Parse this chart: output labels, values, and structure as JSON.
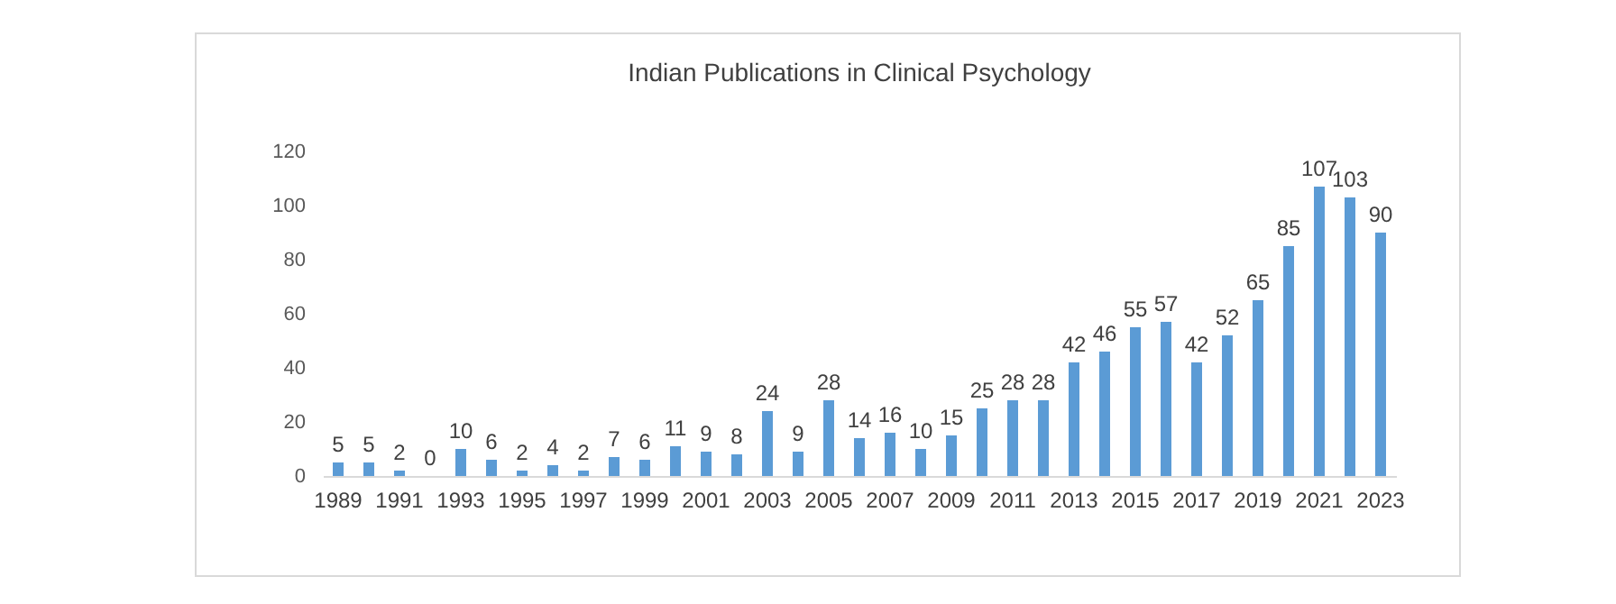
{
  "chart_data": {
    "type": "bar",
    "title": "Indian Publications in Clinical Psychology",
    "categories": [
      "1989",
      null,
      "1991",
      null,
      "1993",
      null,
      "1995",
      null,
      "1997",
      null,
      "1999",
      null,
      "2001",
      null,
      "2003",
      null,
      "2005",
      null,
      "2007",
      null,
      "2009",
      null,
      "2011",
      null,
      "2013",
      null,
      "2015",
      null,
      "2017",
      null,
      "2019",
      null,
      "2021",
      null,
      "2023"
    ],
    "values": [
      5,
      5,
      2,
      0,
      10,
      6,
      2,
      4,
      2,
      7,
      6,
      11,
      9,
      8,
      24,
      9,
      28,
      14,
      16,
      10,
      15,
      25,
      28,
      28,
      42,
      46,
      55,
      57,
      42,
      52,
      65,
      85,
      107,
      103,
      90
    ],
    "color": "#5b9bd5",
    "ylim": [
      0,
      120
    ],
    "yticks": [
      0,
      20,
      40,
      60,
      80,
      100,
      120
    ],
    "data_labels": true
  }
}
